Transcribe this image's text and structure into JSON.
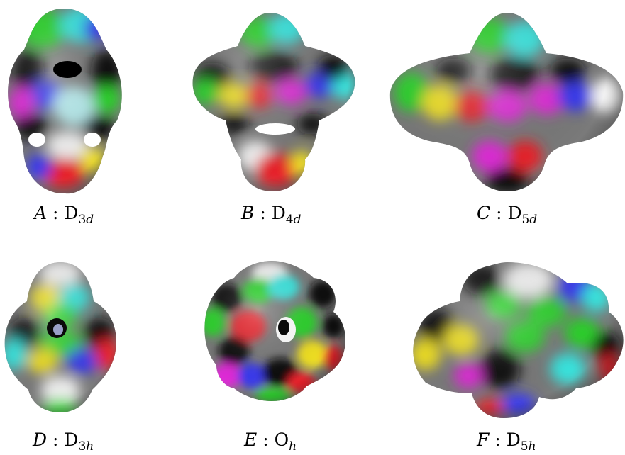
{
  "panels": [
    {
      "id": "A",
      "label": "A",
      "sep": ":",
      "group": "D",
      "subscript_num": "3",
      "subscript_letter": "d"
    },
    {
      "id": "B",
      "label": "B",
      "sep": ":",
      "group": "D",
      "subscript_num": "4",
      "subscript_letter": "d"
    },
    {
      "id": "C",
      "label": "C",
      "sep": ":",
      "group": "D",
      "subscript_num": "5",
      "subscript_letter": "d"
    },
    {
      "id": "D",
      "label": "D",
      "sep": ":",
      "group": "D",
      "subscript_num": "3",
      "subscript_letter": "h"
    },
    {
      "id": "E",
      "label": "E",
      "sep": ":",
      "group": "O",
      "subscript_num": "",
      "subscript_letter": "h"
    },
    {
      "id": "F",
      "label": "F",
      "sep": ":",
      "group": "D",
      "subscript_num": "5",
      "subscript_letter": "h"
    }
  ],
  "colors": {
    "background": "#ffffff",
    "red": "#e8222a",
    "green": "#2bd42b",
    "cyan": "#38e6e0",
    "blue": "#3a3af0",
    "magenta": "#e02bd8",
    "yellow": "#f0e020",
    "dark": "#0a0a0a",
    "white": "#f4f4f4"
  }
}
